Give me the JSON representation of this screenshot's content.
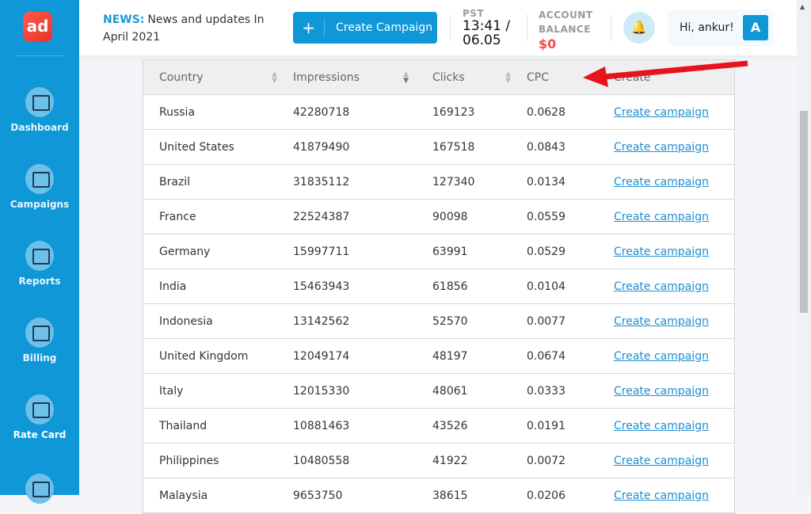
{
  "sidebar": {
    "logo": "ad",
    "items": [
      {
        "label": "Dashboard"
      },
      {
        "label": "Campaigns"
      },
      {
        "label": "Reports"
      },
      {
        "label": "Billing"
      },
      {
        "label": "Rate Card"
      }
    ]
  },
  "header": {
    "news_label": "NEWS:",
    "news_text": "News and updates In April 2021",
    "create_button": "Create Campaign",
    "pst_label": "PST",
    "time": "13:41 / 06.05",
    "balance_label": "ACCOUNT BALANCE",
    "balance": "$0",
    "greeting": "Hi, ankur!",
    "avatar": "A"
  },
  "table": {
    "headers": [
      "Country",
      "Impressions",
      "Clicks",
      "CPC",
      "Create"
    ],
    "rows": [
      [
        "Russia",
        "42280718",
        "169123",
        "0.0628",
        "Create campaign"
      ],
      [
        "United States",
        "41879490",
        "167518",
        "0.0843",
        "Create campaign"
      ],
      [
        "Brazil",
        "31835112",
        "127340",
        "0.0134",
        "Create campaign"
      ],
      [
        "France",
        "22524387",
        "90098",
        "0.0559",
        "Create campaign"
      ],
      [
        "Germany",
        "15997711",
        "63991",
        "0.0529",
        "Create campaign"
      ],
      [
        "India",
        "15463943",
        "61856",
        "0.0104",
        "Create campaign"
      ],
      [
        "Indonesia",
        "13142562",
        "52570",
        "0.0077",
        "Create campaign"
      ],
      [
        "United Kingdom",
        "12049174",
        "48197",
        "0.0674",
        "Create campaign"
      ],
      [
        "Italy",
        "12015330",
        "48061",
        "0.0333",
        "Create campaign"
      ],
      [
        "Thailand",
        "10881463",
        "43526",
        "0.0191",
        "Create campaign"
      ],
      [
        "Philippines",
        "10480558",
        "41922",
        "0.0072",
        "Create campaign"
      ],
      [
        "Malaysia",
        "9653750",
        "38615",
        "0.0206",
        "Create campaign"
      ]
    ]
  },
  "colors": {
    "brand": "#0f97d7",
    "annotation_arrow": "#e8141b",
    "balance": "#f04d4d"
  }
}
